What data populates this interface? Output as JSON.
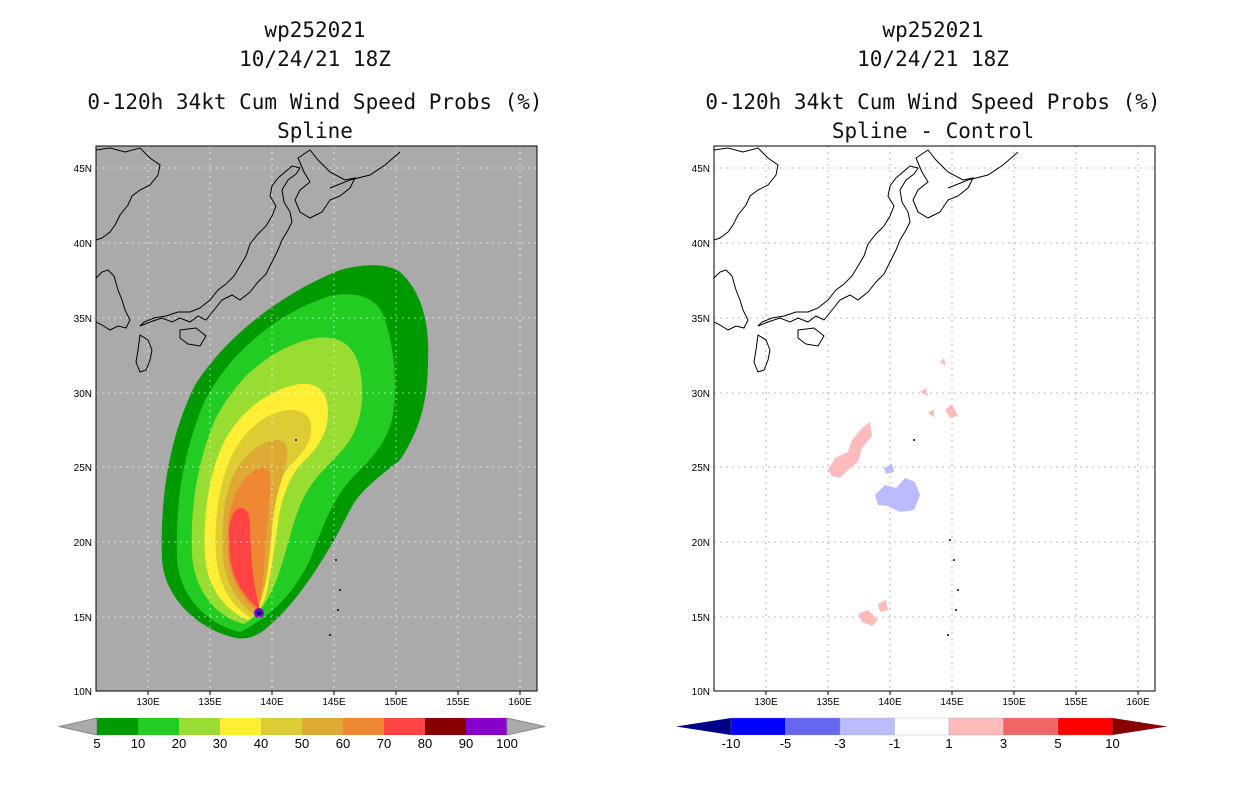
{
  "left_panel": {
    "title_lines": [
      "wp252021",
      "10/24/21 18Z",
      "0-120h 34kt Cum Wind Speed Probs (%)",
      "Spline"
    ]
  },
  "right_panel": {
    "title_lines": [
      "wp252021",
      "10/24/21 18Z",
      "0-120h 34kt Cum Wind Speed Probs (%)",
      "Spline - Control"
    ]
  },
  "axes": {
    "lon_ticks": [
      "130E",
      "135E",
      "140E",
      "145E",
      "150E",
      "155E",
      "160E"
    ],
    "lat_ticks": [
      "45N",
      "40N",
      "35N",
      "30N",
      "25N",
      "20N",
      "15N",
      "10N"
    ]
  },
  "colorbars": {
    "left": {
      "labels": [
        "5",
        "10",
        "20",
        "30",
        "40",
        "50",
        "60",
        "70",
        "80",
        "90",
        "100"
      ],
      "colors": [
        "#009900",
        "#22cc22",
        "#99dd33",
        "#ffee33",
        "#ddcc33",
        "#ddaa33",
        "#ee8833",
        "#ff4444",
        "#880000",
        "#8800cc"
      ],
      "end_color": "#aaaaaa"
    },
    "right": {
      "labels": [
        "-10",
        "-5",
        "-3",
        "-1",
        "1",
        "3",
        "5",
        "10"
      ],
      "colors": [
        "#0000ff",
        "#6666ee",
        "#bbbbff",
        "#ffffff",
        "#ffbbbb",
        "#ee6666",
        "#ff0000"
      ],
      "end_low": "#000088",
      "end_high": "#880000"
    }
  },
  "colors": {
    "map_background_left": "#aaaaaa",
    "map_background_right": "#ffffff",
    "coastline": "#000000",
    "grid": "#bbbbbb"
  }
}
